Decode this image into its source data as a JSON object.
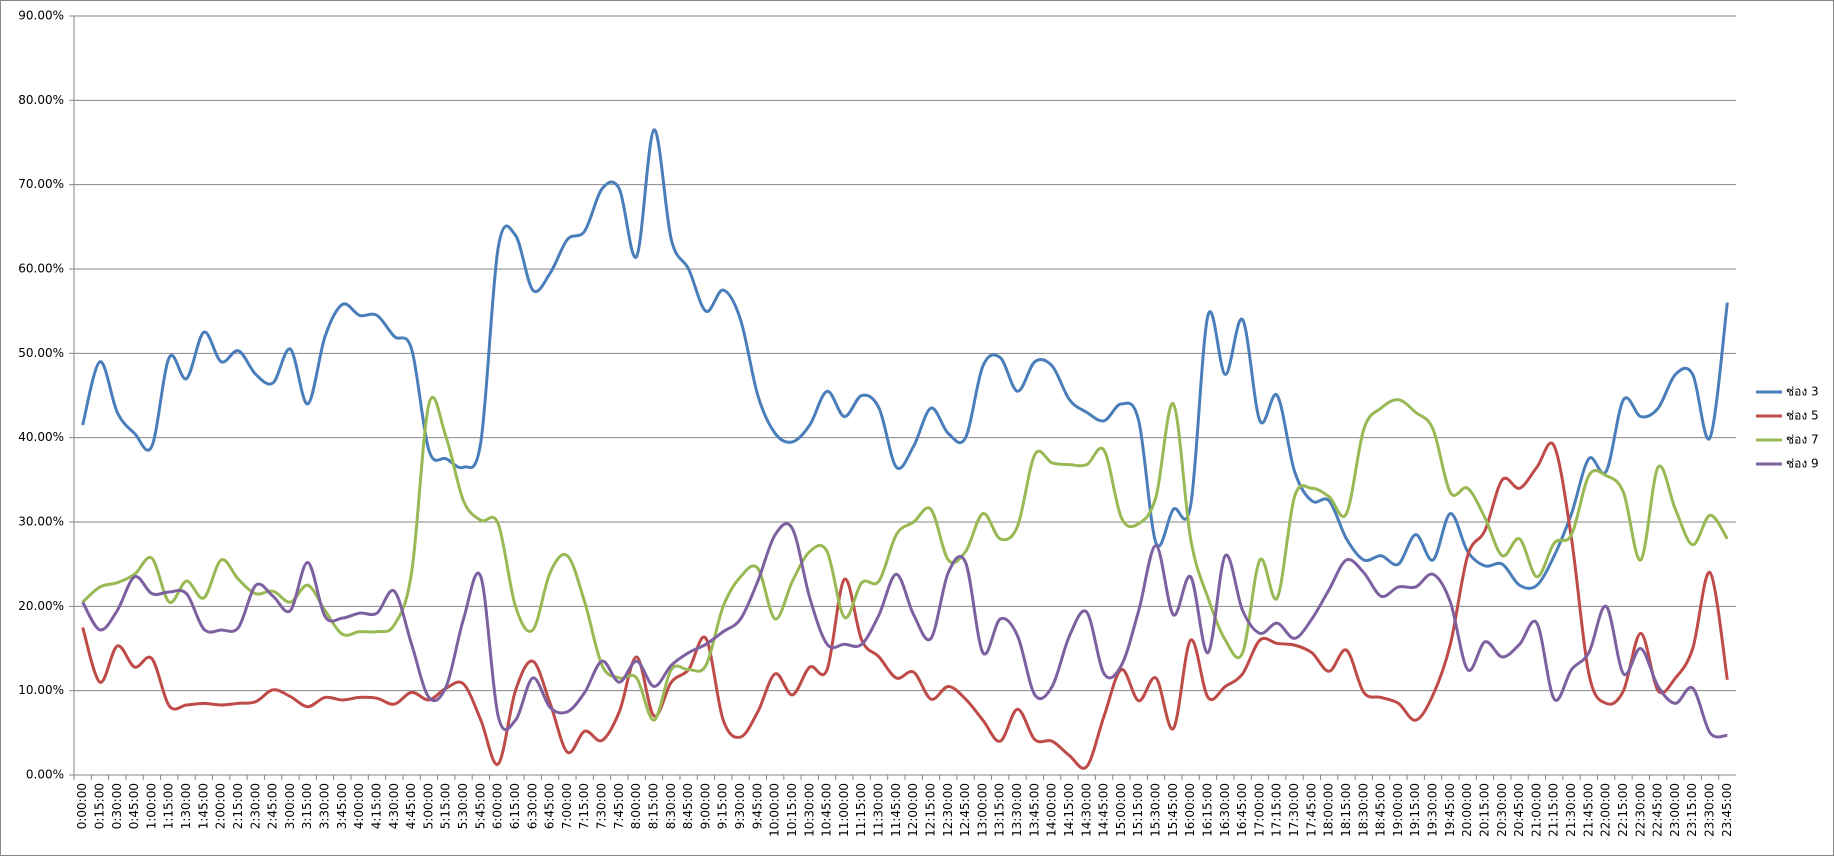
{
  "chart_data": {
    "type": "line",
    "categories": [
      "0:00:00",
      "0:15:00",
      "0:30:00",
      "0:45:00",
      "1:00:00",
      "1:15:00",
      "1:30:00",
      "1:45:00",
      "2:00:00",
      "2:15:00",
      "2:30:00",
      "2:45:00",
      "3:00:00",
      "3:15:00",
      "3:30:00",
      "3:45:00",
      "4:00:00",
      "4:15:00",
      "4:30:00",
      "4:45:00",
      "5:00:00",
      "5:15:00",
      "5:30:00",
      "5:45:00",
      "6:00:00",
      "6:15:00",
      "6:30:00",
      "6:45:00",
      "7:00:00",
      "7:15:00",
      "7:30:00",
      "7:45:00",
      "8:00:00",
      "8:15:00",
      "8:30:00",
      "8:45:00",
      "9:00:00",
      "9:15:00",
      "9:30:00",
      "9:45:00",
      "10:00:00",
      "10:15:00",
      "10:30:00",
      "10:45:00",
      "11:00:00",
      "11:15:00",
      "11:30:00",
      "11:45:00",
      "12:00:00",
      "12:15:00",
      "12:30:00",
      "12:45:00",
      "13:00:00",
      "13:15:00",
      "13:30:00",
      "13:45:00",
      "14:00:00",
      "14:15:00",
      "14:30:00",
      "14:45:00",
      "15:00:00",
      "15:15:00",
      "15:30:00",
      "15:45:00",
      "16:00:00",
      "16:15:00",
      "16:30:00",
      "16:45:00",
      "17:00:00",
      "17:15:00",
      "17:30:00",
      "17:45:00",
      "18:00:00",
      "18:15:00",
      "18:30:00",
      "18:45:00",
      "19:00:00",
      "19:15:00",
      "19:30:00",
      "19:45:00",
      "20:00:00",
      "20:15:00",
      "20:30:00",
      "20:45:00",
      "21:00:00",
      "21:15:00",
      "21:30:00",
      "21:45:00",
      "22:00:00",
      "22:15:00",
      "22:30:00",
      "22:45:00",
      "23:00:00",
      "23:15:00",
      "23:30:00",
      "23:45:00"
    ],
    "series": [
      {
        "name": "ช่อง 3",
        "color": "#4a7ebb",
        "values": [
          41.5,
          49,
          43,
          40.5,
          39,
          49.5,
          47,
          52.5,
          49,
          50.3,
          47.5,
          46.5,
          50.5,
          44,
          52,
          55.8,
          54.5,
          54.5,
          52,
          50.5,
          38.5,
          37.5,
          36.5,
          39.5,
          62.5,
          64,
          57.5,
          59.5,
          63.5,
          64.5,
          69.5,
          69.5,
          61.5,
          76.5,
          63.5,
          60,
          55,
          57.5,
          54,
          45,
          40.5,
          39.5,
          41.5,
          45.5,
          42.5,
          45,
          43.5,
          36.5,
          39,
          43.5,
          40.5,
          40,
          48.5,
          49.5,
          45.5,
          49,
          48.5,
          44.5,
          43,
          42,
          44,
          42,
          27.5,
          31.5,
          32,
          54.5,
          47.5,
          54,
          42,
          45,
          36,
          32.5,
          32.5,
          28,
          25.5,
          26,
          25,
          28.5,
          25.5,
          31,
          26.5,
          24.8,
          25,
          22.5,
          22.5,
          26,
          31,
          37.5,
          36,
          44.5,
          42.5,
          43.5,
          47.5,
          47.5,
          40,
          56
        ]
      },
      {
        "name": "ช่อง 5",
        "color": "#be4b48",
        "values": [
          17.5,
          11,
          15.3,
          12.8,
          13.8,
          8.2,
          8.3,
          8.5,
          8.3,
          8.5,
          8.7,
          10.1,
          9.3,
          8.1,
          9.2,
          8.9,
          9.2,
          9.1,
          8.4,
          9.8,
          8.9,
          10.3,
          10.8,
          6.5,
          1.3,
          10,
          13.5,
          8.5,
          2.7,
          5.2,
          4.1,
          7.5,
          14,
          7,
          11,
          12.5,
          16.2,
          6.5,
          4.5,
          7.5,
          12,
          9.5,
          12.8,
          12.5,
          23.2,
          16,
          14,
          11.5,
          12.2,
          9,
          10.5,
          9,
          6.5,
          4,
          7.8,
          4.2,
          4,
          2.3,
          1,
          7,
          12.5,
          8.8,
          11.5,
          5.5,
          16,
          9.2,
          10.5,
          12,
          16,
          15.6,
          15.4,
          14.5,
          12.3,
          14.8,
          9.8,
          9.2,
          8.5,
          6.5,
          9.5,
          15.5,
          26,
          29,
          35,
          34,
          36.5,
          39,
          28,
          12,
          8.5,
          10,
          16.8,
          10,
          11.5,
          15,
          24,
          11.3
        ]
      },
      {
        "name": "ช่อง 7",
        "color": "#98b954",
        "values": [
          20.5,
          22.3,
          22.8,
          23.8,
          25.7,
          20.5,
          23,
          21,
          25.5,
          23.2,
          21.5,
          21.8,
          20.5,
          22.5,
          19.5,
          16.7,
          17,
          17,
          17.8,
          24,
          44,
          40,
          32.5,
          30.2,
          29.8,
          20,
          17.2,
          24,
          26,
          20.5,
          13,
          11.5,
          11.5,
          6.5,
          12.5,
          12.5,
          13,
          20,
          23.5,
          24.5,
          18.5,
          23,
          26.5,
          26.5,
          18.7,
          22.8,
          23,
          28.5,
          30,
          31.5,
          25.5,
          26.5,
          31,
          28,
          29.5,
          38,
          37,
          36.8,
          36.8,
          38.5,
          30.5,
          29.8,
          33,
          44,
          28,
          21,
          16,
          14.5,
          25.5,
          21,
          33,
          34,
          33,
          31,
          41,
          43.5,
          44.5,
          43,
          41,
          33.5,
          34,
          30.5,
          26,
          28,
          23.5,
          27.5,
          28.5,
          35.5,
          35.5,
          33.5,
          25.5,
          36.5,
          31.5,
          27.3,
          30.8,
          28
        ]
      },
      {
        "name": "ช่อง 9",
        "color": "#7d60a0",
        "values": [
          20.5,
          17.2,
          19.5,
          23.5,
          21.5,
          21.7,
          21.5,
          17.3,
          17.2,
          17.5,
          22.5,
          21.2,
          19.5,
          25.2,
          18.8,
          18.6,
          19.2,
          19.2,
          21.8,
          15.5,
          9.2,
          10.5,
          18.5,
          23.5,
          7,
          6.5,
          11.5,
          8,
          7.5,
          9.8,
          13.5,
          11,
          13.5,
          10.5,
          13,
          14.5,
          15.5,
          17,
          18.5,
          23,
          28.5,
          29.2,
          21,
          15.5,
          15.5,
          15.5,
          19,
          23.8,
          19,
          16.2,
          24,
          25.2,
          14.5,
          18.5,
          16.5,
          9.5,
          10.5,
          16.5,
          19.3,
          12,
          13,
          19.5,
          27.2,
          19,
          23.5,
          14.5,
          26,
          19.5,
          16.8,
          18,
          16.2,
          18.5,
          22,
          25.5,
          24,
          21.2,
          22.3,
          22.3,
          23.8,
          20.5,
          12.5,
          15.8,
          14,
          15.5,
          18,
          9,
          12.5,
          14.5,
          20,
          12,
          15,
          10.5,
          8.5,
          10.3,
          5,
          4.7
        ]
      }
    ],
    "ylim": [
      0,
      90
    ],
    "yticks": [
      {
        "value": 0,
        "label": "0.00%"
      },
      {
        "value": 10,
        "label": "10.00%"
      },
      {
        "value": 20,
        "label": "20.00%"
      },
      {
        "value": 30,
        "label": "30.00%"
      },
      {
        "value": 40,
        "label": "40.00%"
      },
      {
        "value": 50,
        "label": "50.00%"
      },
      {
        "value": 60,
        "label": "60.00%"
      },
      {
        "value": 70,
        "label": "70.00%"
      },
      {
        "value": 80,
        "label": "80.00%"
      },
      {
        "value": 90,
        "label": "90.00%"
      }
    ],
    "grid": true,
    "smooth": true,
    "legend": "right"
  }
}
